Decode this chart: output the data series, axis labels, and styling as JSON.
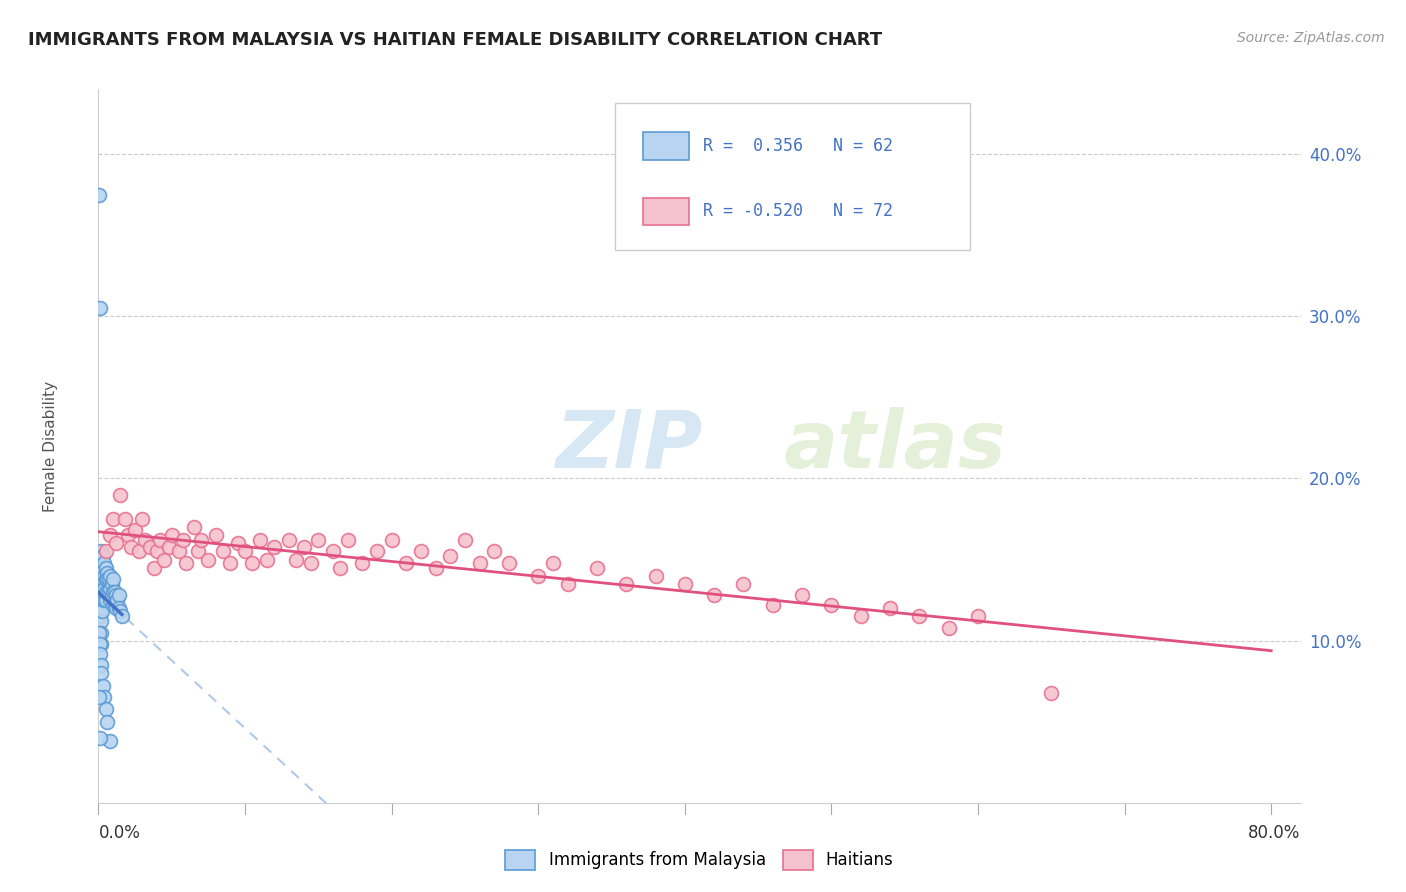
{
  "title": "IMMIGRANTS FROM MALAYSIA VS HAITIAN FEMALE DISABILITY CORRELATION CHART",
  "source": "Source: ZipAtlas.com",
  "ylabel": "Female Disability",
  "right_yticklabels": [
    "10.0%",
    "20.0%",
    "30.0%",
    "40.0%"
  ],
  "right_yticks": [
    0.1,
    0.2,
    0.3,
    0.4
  ],
  "legend_line1": "R =  0.356   N = 62",
  "legend_line2": "R = -0.520   N = 72",
  "color_malaysia_fill": "#b8d4f0",
  "color_malaysia_edge": "#5b9bd5",
  "color_haiti_fill": "#f4c2ce",
  "color_haiti_edge": "#e87090",
  "color_blue_line": "#4472C4",
  "color_pink_line": "#e05080",
  "color_dashed": "#b0c8e8",
  "watermark_zip": "ZIP",
  "watermark_atlas": "atlas",
  "xlim": [
    0.0,
    0.82
  ],
  "ylim": [
    0.0,
    0.44
  ],
  "background_color": "#ffffff",
  "grid_color": "#cccccc",
  "malaysia_x": [
    0.0005,
    0.0008,
    0.001,
    0.001,
    0.0012,
    0.0013,
    0.0015,
    0.0015,
    0.0018,
    0.002,
    0.002,
    0.002,
    0.0022,
    0.0025,
    0.0025,
    0.003,
    0.003,
    0.003,
    0.003,
    0.0035,
    0.004,
    0.004,
    0.004,
    0.004,
    0.005,
    0.005,
    0.005,
    0.005,
    0.006,
    0.006,
    0.006,
    0.007,
    0.007,
    0.008,
    0.008,
    0.008,
    0.009,
    0.009,
    0.01,
    0.01,
    0.01,
    0.011,
    0.011,
    0.012,
    0.012,
    0.013,
    0.014,
    0.014,
    0.015,
    0.016,
    0.0005,
    0.0008,
    0.001,
    0.0015,
    0.002,
    0.003,
    0.004,
    0.005,
    0.006,
    0.008,
    0.0005,
    0.001
  ],
  "malaysia_y": [
    0.375,
    0.305,
    0.135,
    0.115,
    0.125,
    0.118,
    0.112,
    0.105,
    0.098,
    0.155,
    0.145,
    0.138,
    0.13,
    0.125,
    0.118,
    0.152,
    0.145,
    0.138,
    0.13,
    0.128,
    0.148,
    0.14,
    0.132,
    0.125,
    0.145,
    0.138,
    0.13,
    0.125,
    0.142,
    0.138,
    0.13,
    0.138,
    0.13,
    0.14,
    0.132,
    0.125,
    0.135,
    0.128,
    0.138,
    0.13,
    0.122,
    0.13,
    0.122,
    0.128,
    0.12,
    0.125,
    0.128,
    0.12,
    0.118,
    0.115,
    0.105,
    0.098,
    0.092,
    0.085,
    0.08,
    0.072,
    0.065,
    0.058,
    0.05,
    0.038,
    0.065,
    0.04
  ],
  "haiti_x": [
    0.005,
    0.008,
    0.01,
    0.012,
    0.015,
    0.018,
    0.02,
    0.022,
    0.025,
    0.028,
    0.03,
    0.032,
    0.035,
    0.038,
    0.04,
    0.042,
    0.045,
    0.048,
    0.05,
    0.055,
    0.058,
    0.06,
    0.065,
    0.068,
    0.07,
    0.075,
    0.08,
    0.085,
    0.09,
    0.095,
    0.1,
    0.105,
    0.11,
    0.115,
    0.12,
    0.13,
    0.135,
    0.14,
    0.145,
    0.15,
    0.16,
    0.165,
    0.17,
    0.18,
    0.19,
    0.2,
    0.21,
    0.22,
    0.23,
    0.24,
    0.25,
    0.26,
    0.27,
    0.28,
    0.3,
    0.31,
    0.32,
    0.34,
    0.36,
    0.38,
    0.4,
    0.42,
    0.44,
    0.46,
    0.48,
    0.5,
    0.52,
    0.54,
    0.56,
    0.58,
    0.6,
    0.65
  ],
  "haiti_y": [
    0.155,
    0.165,
    0.175,
    0.16,
    0.19,
    0.175,
    0.165,
    0.158,
    0.168,
    0.155,
    0.175,
    0.162,
    0.158,
    0.145,
    0.155,
    0.162,
    0.15,
    0.158,
    0.165,
    0.155,
    0.162,
    0.148,
    0.17,
    0.155,
    0.162,
    0.15,
    0.165,
    0.155,
    0.148,
    0.16,
    0.155,
    0.148,
    0.162,
    0.15,
    0.158,
    0.162,
    0.15,
    0.158,
    0.148,
    0.162,
    0.155,
    0.145,
    0.162,
    0.148,
    0.155,
    0.162,
    0.148,
    0.155,
    0.145,
    0.152,
    0.162,
    0.148,
    0.155,
    0.148,
    0.14,
    0.148,
    0.135,
    0.145,
    0.135,
    0.14,
    0.135,
    0.128,
    0.135,
    0.122,
    0.128,
    0.122,
    0.115,
    0.12,
    0.115,
    0.108,
    0.115,
    0.068
  ]
}
